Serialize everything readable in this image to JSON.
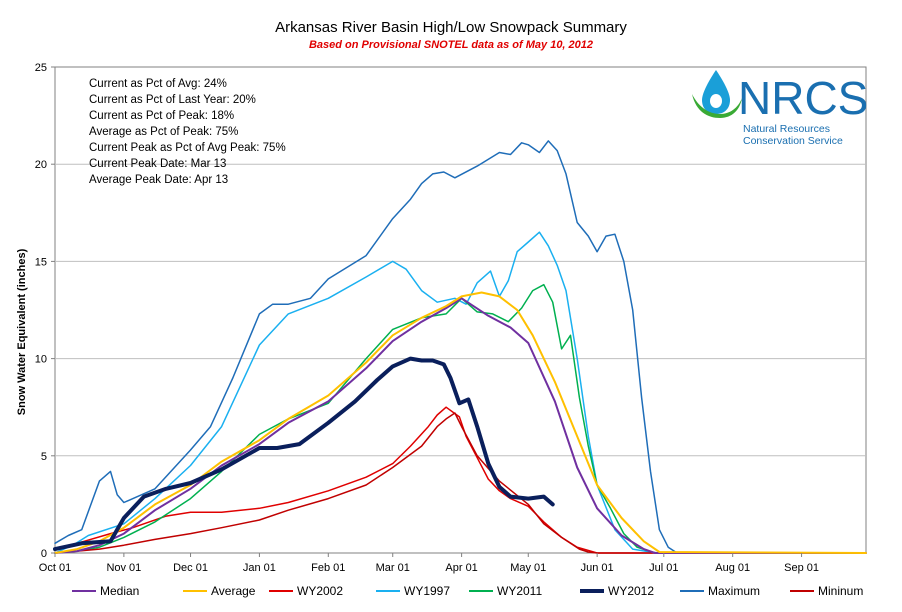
{
  "chart_data": {
    "type": "line",
    "title": "Arkansas River Basin High/Low Snowpack Summary",
    "subtitle": "Based on Provisional SNOTEL data as of May 10, 2012",
    "ylabel": "Snow Water Equivalent (inches)",
    "xlabel": "",
    "x_unit": "days since Oct 01",
    "xlim": [
      0,
      365
    ],
    "ylim": [
      0,
      25
    ],
    "y_ticks": [
      0,
      5,
      10,
      15,
      20,
      25
    ],
    "x_ticks": [
      {
        "label": "Oct 01",
        "day": 0
      },
      {
        "label": "Nov 01",
        "day": 31
      },
      {
        "label": "Dec 01",
        "day": 61
      },
      {
        "label": "Jan 01",
        "day": 92
      },
      {
        "label": "Feb 01",
        "day": 123
      },
      {
        "label": "Mar 01",
        "day": 152
      },
      {
        "label": "Apr 01",
        "day": 183
      },
      {
        "label": "May 01",
        "day": 213
      },
      {
        "label": "Jun 01",
        "day": 244
      },
      {
        "label": "Jul 01",
        "day": 274
      },
      {
        "label": "Aug 01",
        "day": 305
      },
      {
        "label": "Sep 01",
        "day": 336
      }
    ],
    "grid": true,
    "legend_position": "bottom",
    "stats": [
      "Current as Pct of Avg: 24%",
      "Current as Pct of Last Year: 20%",
      "Current as Pct of Peak: 18%",
      "Average as Pct of Peak: 75%",
      "Current Peak as Pct of Avg Peak: 75%",
      "Current Peak Date: Mar 13",
      "Average Peak Date: Apr 13"
    ],
    "series": [
      {
        "name": "Median",
        "color": "#7030a0",
        "width": 2,
        "x": [
          0,
          10,
          20,
          31,
          45,
          61,
          75,
          92,
          105,
          123,
          140,
          152,
          165,
          176,
          183,
          195,
          205,
          213,
          225,
          235,
          244,
          255,
          265,
          270,
          365
        ],
        "y": [
          0,
          0.1,
          0.4,
          1,
          2.2,
          3.3,
          4.5,
          5.6,
          6.7,
          7.8,
          9.5,
          10.9,
          11.9,
          12.6,
          13.1,
          12.2,
          11.6,
          10.8,
          7.8,
          4.4,
          2.3,
          0.9,
          0.2,
          0,
          0
        ]
      },
      {
        "name": "Average",
        "color": "#ffc000",
        "width": 2,
        "x": [
          0,
          10,
          20,
          31,
          45,
          61,
          75,
          92,
          105,
          123,
          140,
          152,
          165,
          176,
          183,
          192,
          200,
          208,
          215,
          225,
          235,
          244,
          255,
          265,
          272,
          365
        ],
        "y": [
          0,
          0.2,
          0.6,
          1.3,
          2.5,
          3.5,
          4.7,
          5.8,
          6.9,
          8.1,
          9.8,
          11.2,
          12.1,
          12.7,
          13.2,
          13.4,
          13.2,
          12.5,
          11.2,
          8.8,
          6.0,
          3.5,
          1.8,
          0.6,
          0.05,
          0
        ]
      },
      {
        "name": "WY2002",
        "color": "#e00000",
        "width": 1.5,
        "x": [
          0,
          10,
          25,
          35,
          50,
          61,
          75,
          92,
          105,
          123,
          140,
          152,
          160,
          168,
          172,
          176,
          182,
          185,
          190,
          195,
          200,
          205,
          213,
          220,
          228,
          235,
          244,
          365
        ],
        "y": [
          0.2,
          0.5,
          1.0,
          1.3,
          1.9,
          2.1,
          2.1,
          2.3,
          2.6,
          3.2,
          3.9,
          4.6,
          5.5,
          6.5,
          7.1,
          7.5,
          7.0,
          6.0,
          4.9,
          3.8,
          3.2,
          2.8,
          2.4,
          1.6,
          0.8,
          0.3,
          0,
          0
        ]
      },
      {
        "name": "WY1997",
        "color": "#1ab0f0",
        "width": 1.5,
        "x": [
          0,
          8,
          15,
          31,
          45,
          61,
          75,
          92,
          105,
          123,
          140,
          152,
          158,
          165,
          172,
          180,
          185,
          190,
          196,
          200,
          204,
          208,
          213,
          218,
          222,
          226,
          230,
          235,
          240,
          244,
          252,
          260,
          268,
          272,
          365
        ],
        "y": [
          0,
          0.4,
          0.9,
          1.5,
          2.8,
          4.5,
          6.5,
          10.7,
          12.3,
          13.1,
          14.2,
          15.0,
          14.6,
          13.5,
          12.9,
          13.1,
          12.8,
          13.9,
          14.5,
          13.2,
          14.0,
          15.5,
          16.0,
          16.5,
          15.8,
          14.8,
          13.5,
          10.0,
          6.0,
          3.5,
          1.2,
          0.2,
          0.05,
          0,
          0
        ]
      },
      {
        "name": "WY2011",
        "color": "#00b050",
        "width": 1.5,
        "x": [
          0,
          10,
          20,
          31,
          45,
          61,
          75,
          92,
          105,
          123,
          140,
          152,
          165,
          176,
          183,
          190,
          197,
          204,
          210,
          215,
          220,
          224,
          228,
          232,
          236,
          240,
          244,
          250,
          256,
          262,
          270,
          365
        ],
        "y": [
          0,
          0.1,
          0.3,
          0.8,
          1.6,
          2.8,
          4.2,
          6.1,
          6.9,
          7.7,
          10.0,
          11.5,
          12.1,
          12.3,
          13.1,
          12.4,
          12.3,
          11.9,
          12.6,
          13.5,
          13.8,
          12.9,
          10.5,
          11.2,
          8.0,
          5.5,
          3.5,
          2.3,
          1.0,
          0.3,
          0,
          0
        ]
      },
      {
        "name": "WY2012",
        "color": "#0a1f5c",
        "width": 4,
        "x": [
          0,
          12,
          25,
          31,
          40,
          50,
          61,
          75,
          92,
          100,
          110,
          123,
          135,
          145,
          152,
          160,
          165,
          170,
          175,
          178,
          182,
          186,
          190,
          195,
          200,
          205,
          213,
          220,
          224
        ],
        "y": [
          0.2,
          0.5,
          0.6,
          1.8,
          2.9,
          3.3,
          3.6,
          4.3,
          5.4,
          5.4,
          5.6,
          6.7,
          7.8,
          8.9,
          9.6,
          10.0,
          9.9,
          9.9,
          9.7,
          9.0,
          7.7,
          7.9,
          6.5,
          4.6,
          3.4,
          2.9,
          2.8,
          2.9,
          2.5
        ]
      },
      {
        "name": "Maximum",
        "color": "#1f6db8",
        "width": 1.5,
        "x": [
          0,
          6,
          12,
          20,
          25,
          28,
          31,
          45,
          61,
          70,
          80,
          92,
          98,
          105,
          115,
          123,
          140,
          152,
          160,
          165,
          170,
          175,
          180,
          190,
          200,
          205,
          210,
          213,
          218,
          222,
          226,
          230,
          235,
          240,
          244,
          248,
          252,
          256,
          260,
          264,
          268,
          272,
          276,
          280,
          365
        ],
        "y": [
          0.5,
          0.9,
          1.2,
          3.7,
          4.2,
          3.0,
          2.6,
          3.3,
          5.3,
          6.5,
          9.0,
          12.3,
          12.8,
          12.8,
          13.1,
          14.1,
          15.3,
          17.2,
          18.2,
          19.0,
          19.5,
          19.6,
          19.3,
          19.9,
          20.6,
          20.5,
          21.1,
          21.0,
          20.6,
          21.2,
          20.7,
          19.5,
          17.0,
          16.3,
          15.5,
          16.3,
          16.4,
          15.0,
          12.5,
          8.0,
          4.2,
          1.2,
          0.3,
          0,
          0
        ]
      },
      {
        "name": "Mininum",
        "color": "#c00000",
        "width": 1.5,
        "x": [
          0,
          10,
          20,
          31,
          45,
          61,
          75,
          92,
          105,
          123,
          140,
          152,
          165,
          172,
          176,
          180,
          183,
          190,
          200,
          213,
          220,
          228,
          236,
          240,
          244,
          365
        ],
        "y": [
          0,
          0.1,
          0.2,
          0.4,
          0.7,
          1.0,
          1.3,
          1.7,
          2.2,
          2.8,
          3.5,
          4.4,
          5.5,
          6.5,
          6.9,
          7.2,
          6.5,
          5.0,
          3.7,
          2.5,
          1.5,
          0.8,
          0.2,
          0.05,
          0,
          0
        ]
      }
    ]
  },
  "logo": {
    "letters": "NRCS",
    "line1": "Natural Resources",
    "line2": "Conservation Service"
  }
}
